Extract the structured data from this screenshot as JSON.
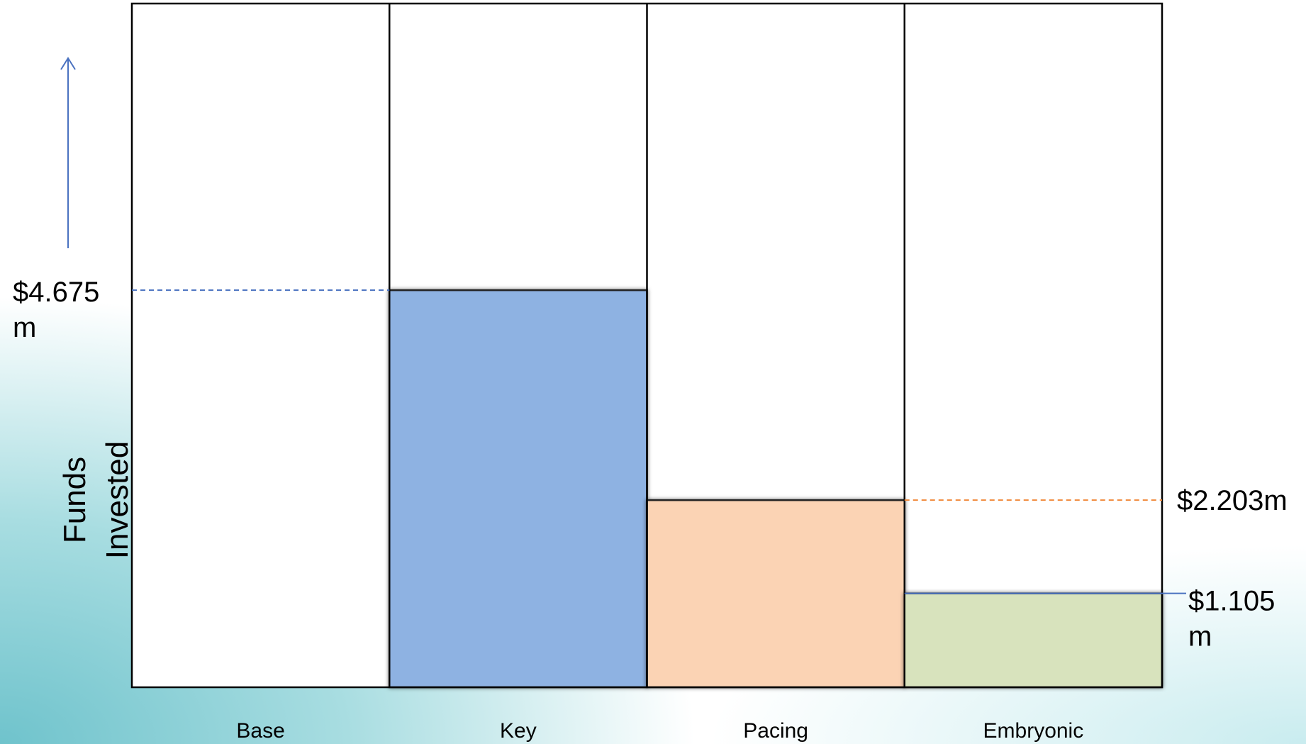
{
  "chart_data": {
    "type": "bar",
    "categories": [
      "Base",
      "Key",
      "Pacing",
      "Embryonic"
    ],
    "series": [
      {
        "values": [
          null,
          4.675,
          2.203,
          1.105
        ]
      }
    ],
    "bar_colors": [
      null,
      "#8eb2e2",
      "#fbd3b4",
      "#d8e3bd"
    ],
    "ylim": [
      0,
      8.05
    ],
    "ylabel": [
      "Funds",
      "Invested"
    ],
    "annotations": [
      {
        "text": [
          "$4.675",
          "m"
        ],
        "value": 4.675,
        "side": "left",
        "line_color": "#4a72c0",
        "style": "dashed"
      },
      {
        "text": [
          "$2.203m"
        ],
        "value": 2.203,
        "side": "right",
        "line_color": "#f08a3c",
        "style": "dashed"
      },
      {
        "text": [
          "$1.105",
          "m"
        ],
        "value": 1.105,
        "side": "right",
        "line_color": "#4a72c0",
        "style": "solid"
      }
    ],
    "axis_arrow_color": "#4a72c0",
    "grid": false
  }
}
